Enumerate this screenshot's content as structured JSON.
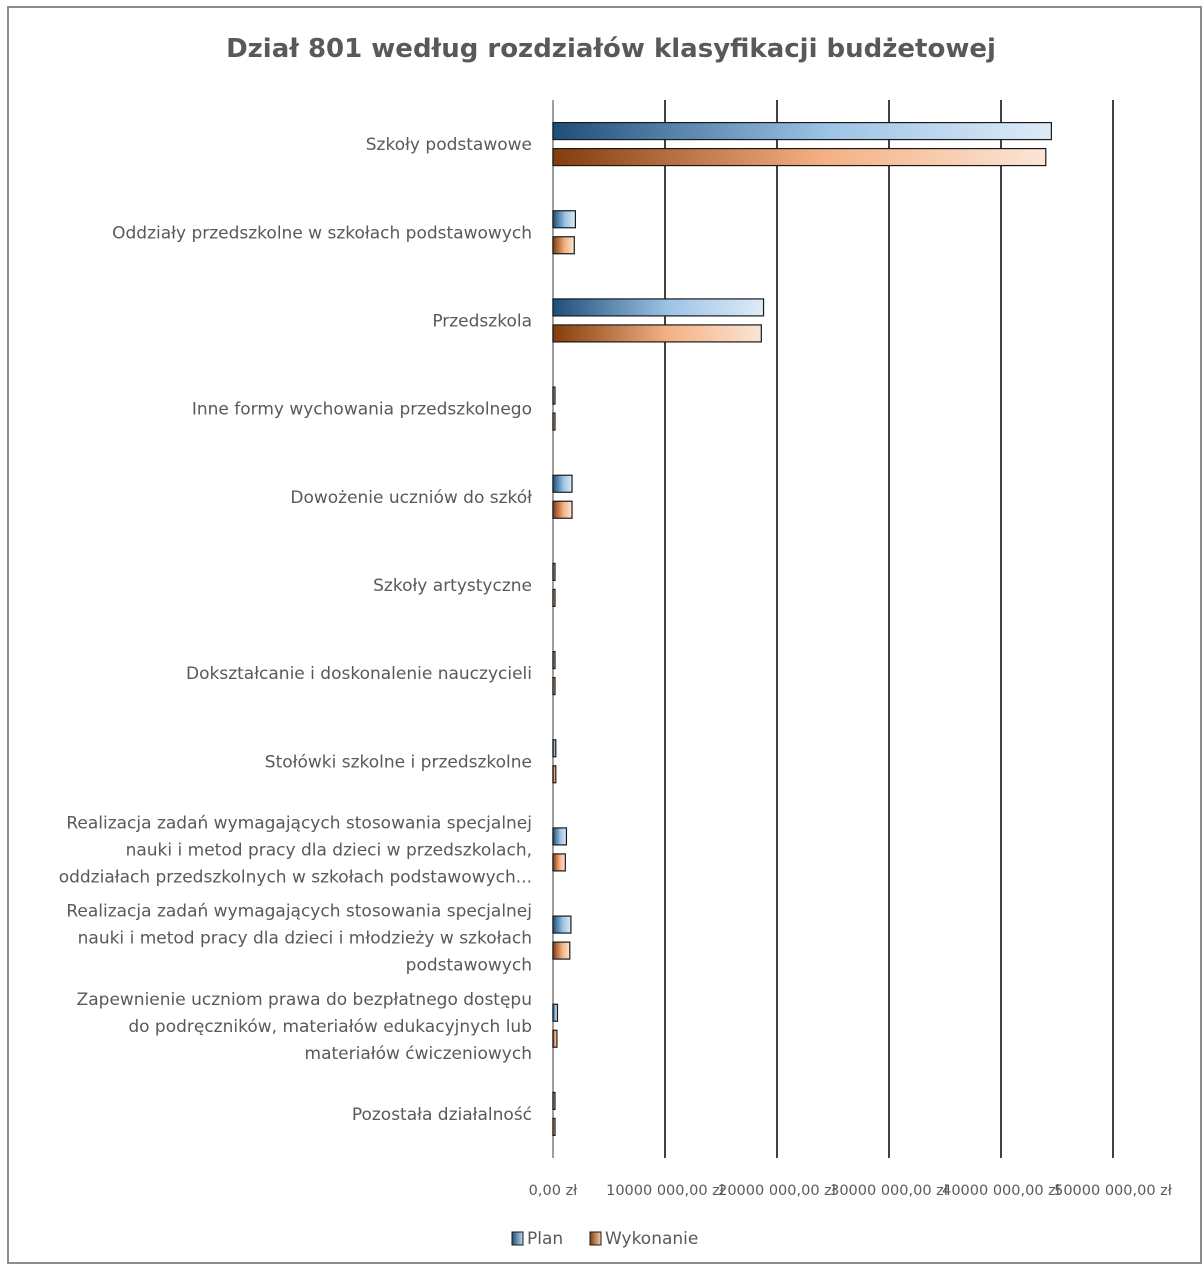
{
  "chart_data": {
    "type": "bar",
    "orientation": "horizontal",
    "title": "Dział 801 według rozdziałów klasyfikacji budżetowej",
    "categories": [
      "Szkoły podstawowe",
      "Oddziały przedszkolne w szkołach podstawowych",
      "Przedszkola",
      "Inne formy wychowania przedszkolnego",
      "Dowożenie uczniów do szkół",
      "Szkoły artystyczne",
      "Dokształcanie i doskonalenie nauczycieli",
      "Stołówki szkolne i przedszkolne",
      "Realizacja zadań wymagających stosowania specjalnej nauki i metod pracy dla dzieci w przedszkolach, oddziałach przedszkolnych w szkołach podstawowych...",
      "Realizacja zadań wymagających stosowania specjalnej nauki i metod pracy dla dzieci i młodzieży w szkołach podstawowych",
      "Zapewnienie uczniom prawa do bezpłatnego dostępu do podręczników, materiałów edukacyjnych lub materiałów ćwiczeniowych",
      "Pozostała działalność"
    ],
    "category_lines": [
      [
        "Szkoły podstawowe"
      ],
      [
        "Oddziały przedszkolne w szkołach podstawowych"
      ],
      [
        "Przedszkola"
      ],
      [
        "Inne formy wychowania przedszkolnego"
      ],
      [
        "Dowożenie uczniów do szkół"
      ],
      [
        "Szkoły artystyczne"
      ],
      [
        "Dokształcanie i doskonalenie nauczycieli"
      ],
      [
        "Stołówki szkolne i przedszkolne"
      ],
      [
        "Realizacja zadań wymagających stosowania specjalnej",
        "nauki i metod pracy dla dzieci w przedszkolach,",
        "oddziałach przedszkolnych w szkołach podstawowych..."
      ],
      [
        "Realizacja zadań wymagających stosowania specjalnej",
        "nauki i metod pracy dla dzieci i młodzieży w szkołach",
        "podstawowych"
      ],
      [
        "Zapewnienie uczniom prawa do bezpłatnego dostępu",
        "do podręczników, materiałów edukacyjnych lub",
        "materiałów ćwiczeniowych"
      ],
      [
        "Pozostała działalność"
      ]
    ],
    "series": [
      {
        "name": "Plan",
        "color": "#2e75b6",
        "values": [
          44500000,
          2000000,
          18800000,
          50000,
          1700000,
          30000,
          150000,
          250000,
          1200000,
          1600000,
          400000,
          50000
        ]
      },
      {
        "name": "Wykonanie",
        "color": "#c55a11",
        "values": [
          44000000,
          1900000,
          18600000,
          50000,
          1700000,
          30000,
          150000,
          250000,
          1100000,
          1500000,
          350000,
          50000
        ]
      }
    ],
    "xlim": [
      0,
      50000000
    ],
    "x_ticks": [
      0,
      10000000,
      20000000,
      30000000,
      40000000,
      50000000
    ],
    "x_tick_labels": [
      "0,00 zł",
      "10000 000,00 zł",
      "20000 000,00 zł",
      "30000 000,00 zł",
      "40000 000,00 zł",
      "50000 000,00 zł"
    ],
    "grid": "vertical",
    "legend": "bottom"
  }
}
